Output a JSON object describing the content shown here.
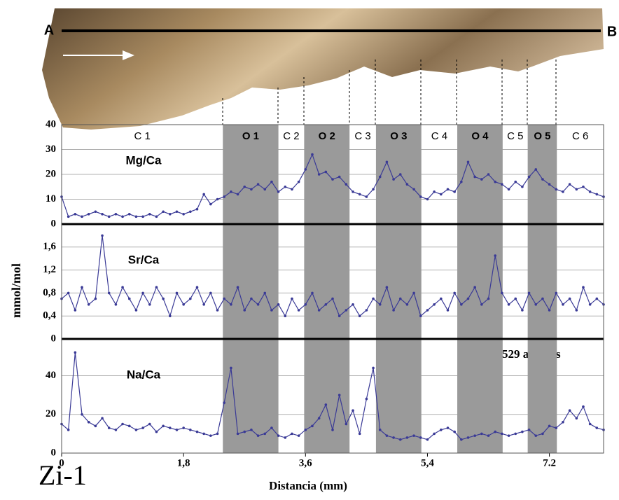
{
  "figure": {
    "label": "Zi-1",
    "line_start": "A",
    "line_end": "B"
  },
  "chart_data": [
    {
      "type": "line",
      "title": "Mg/Ca",
      "xlim": [
        0,
        8
      ],
      "ylim": [
        0,
        40
      ],
      "yticks": [
        0,
        10,
        20,
        30,
        40
      ],
      "grid": true,
      "zones": [
        {
          "label": "C 1",
          "start": 0,
          "end": 2.38,
          "shaded": false
        },
        {
          "label": "O 1",
          "start": 2.38,
          "end": 3.2,
          "shaded": true
        },
        {
          "label": "C 2",
          "start": 3.2,
          "end": 3.58,
          "shaded": false
        },
        {
          "label": "O 2",
          "start": 3.58,
          "end": 4.25,
          "shaded": true
        },
        {
          "label": "C 3",
          "start": 4.25,
          "end": 4.64,
          "shaded": false
        },
        {
          "label": "O 3",
          "start": 4.64,
          "end": 5.31,
          "shaded": true
        },
        {
          "label": "C 4",
          "start": 5.31,
          "end": 5.84,
          "shaded": false
        },
        {
          "label": "O 4",
          "start": 5.84,
          "end": 6.51,
          "shaded": true
        },
        {
          "label": "C 5",
          "start": 6.51,
          "end": 6.88,
          "shaded": false
        },
        {
          "label": "O 5",
          "start": 6.88,
          "end": 7.31,
          "shaded": true
        },
        {
          "label": "C 6",
          "start": 7.31,
          "end": 8,
          "shaded": false
        }
      ],
      "x": [
        0,
        0.1,
        0.2,
        0.3,
        0.4,
        0.5,
        0.6,
        0.7,
        0.8,
        0.9,
        1,
        1.1,
        1.2,
        1.3,
        1.4,
        1.5,
        1.6,
        1.7,
        1.8,
        1.9,
        2,
        2.1,
        2.2,
        2.3,
        2.4,
        2.5,
        2.6,
        2.7,
        2.8,
        2.9,
        3,
        3.1,
        3.2,
        3.3,
        3.4,
        3.5,
        3.6,
        3.7,
        3.8,
        3.9,
        4,
        4.1,
        4.2,
        4.3,
        4.4,
        4.5,
        4.6,
        4.7,
        4.8,
        4.9,
        5,
        5.1,
        5.2,
        5.3,
        5.4,
        5.5,
        5.6,
        5.7,
        5.8,
        5.9,
        6,
        6.1,
        6.2,
        6.3,
        6.4,
        6.5,
        6.6,
        6.7,
        6.8,
        6.9,
        7,
        7.1,
        7.2,
        7.3,
        7.4,
        7.5,
        7.6,
        7.7,
        7.8,
        7.9,
        8
      ],
      "series": [
        {
          "color": "#3a3a96",
          "values": [
            11,
            3,
            4,
            3,
            4,
            5,
            4,
            3,
            4,
            3,
            4,
            3,
            3,
            4,
            3,
            5,
            4,
            5,
            4,
            5,
            6,
            12,
            8,
            10,
            11,
            13,
            12,
            15,
            14,
            16,
            14,
            17,
            13,
            15,
            14,
            17,
            22,
            28,
            20,
            21,
            18,
            19,
            16,
            13,
            12,
            11,
            14,
            19,
            25,
            18,
            20,
            16,
            14,
            11,
            10,
            13,
            12,
            14,
            13,
            17,
            25,
            19,
            18,
            20,
            17,
            16,
            14,
            17,
            15,
            19,
            22,
            18,
            16,
            14,
            13,
            16,
            14,
            15,
            13,
            12,
            11
          ]
        }
      ]
    },
    {
      "type": "line",
      "title": "Sr/Ca",
      "y_label": "mmol/mol",
      "xlim": [
        0,
        8
      ],
      "ylim": [
        0,
        2
      ],
      "yticks": [
        0,
        {
          "value": 0.4,
          "label": "0,4"
        },
        {
          "value": 0.8,
          "label": "0,8"
        },
        {
          "value": 1.2,
          "label": "1,2"
        },
        {
          "value": 1.6,
          "label": "1,6"
        }
      ],
      "grid": true,
      "x": [
        0,
        0.1,
        0.2,
        0.3,
        0.4,
        0.5,
        0.6,
        0.7,
        0.8,
        0.9,
        1,
        1.1,
        1.2,
        1.3,
        1.4,
        1.5,
        1.6,
        1.7,
        1.8,
        1.9,
        2,
        2.1,
        2.2,
        2.3,
        2.4,
        2.5,
        2.6,
        2.7,
        2.8,
        2.9,
        3,
        3.1,
        3.2,
        3.3,
        3.4,
        3.5,
        3.6,
        3.7,
        3.8,
        3.9,
        4,
        4.1,
        4.2,
        4.3,
        4.4,
        4.5,
        4.6,
        4.7,
        4.8,
        4.9,
        5,
        5.1,
        5.2,
        5.3,
        5.4,
        5.5,
        5.6,
        5.7,
        5.8,
        5.9,
        6,
        6.1,
        6.2,
        6.3,
        6.4,
        6.5,
        6.6,
        6.7,
        6.8,
        6.9,
        7,
        7.1,
        7.2,
        7.3,
        7.4,
        7.5,
        7.6,
        7.7,
        7.8,
        7.9,
        8
      ],
      "series": [
        {
          "color": "#3a3a96",
          "values": [
            0.7,
            0.8,
            0.5,
            0.9,
            0.6,
            0.7,
            1.8,
            0.8,
            0.6,
            0.9,
            0.7,
            0.5,
            0.8,
            0.6,
            0.9,
            0.7,
            0.4,
            0.8,
            0.6,
            0.7,
            0.9,
            0.6,
            0.8,
            0.5,
            0.7,
            0.6,
            0.9,
            0.5,
            0.7,
            0.6,
            0.8,
            0.5,
            0.6,
            0.4,
            0.7,
            0.5,
            0.6,
            0.8,
            0.5,
            0.6,
            0.7,
            0.4,
            0.5,
            0.6,
            0.4,
            0.5,
            0.7,
            0.6,
            0.9,
            0.5,
            0.7,
            0.6,
            0.8,
            0.4,
            0.5,
            0.6,
            0.7,
            0.5,
            0.8,
            0.6,
            0.7,
            0.9,
            0.6,
            0.7,
            1.45,
            0.8,
            0.6,
            0.7,
            0.5,
            0.8,
            0.6,
            0.7,
            0.5,
            0.8,
            0.6,
            0.7,
            0.5,
            0.9,
            0.6,
            0.7,
            0.6
          ]
        }
      ]
    },
    {
      "type": "line",
      "title": "Na/Ca",
      "x_label": "Distancia (mm)",
      "annotation": "n = 529 análisis",
      "xlim": [
        0,
        8
      ],
      "xticks": [
        0,
        {
          "value": 1.8,
          "label": "1,8"
        },
        {
          "value": 3.6,
          "label": "3,6"
        },
        {
          "value": 5.4,
          "label": "5,4"
        },
        7.2
      ],
      "ylim": [
        0,
        59
      ],
      "yticks": [
        0,
        20,
        40
      ],
      "grid": true,
      "x": [
        0,
        0.1,
        0.2,
        0.3,
        0.4,
        0.5,
        0.6,
        0.7,
        0.8,
        0.9,
        1,
        1.1,
        1.2,
        1.3,
        1.4,
        1.5,
        1.6,
        1.7,
        1.8,
        1.9,
        2,
        2.1,
        2.2,
        2.3,
        2.4,
        2.5,
        2.6,
        2.7,
        2.8,
        2.9,
        3,
        3.1,
        3.2,
        3.3,
        3.4,
        3.5,
        3.6,
        3.7,
        3.8,
        3.9,
        4,
        4.1,
        4.2,
        4.3,
        4.4,
        4.5,
        4.6,
        4.7,
        4.8,
        4.9,
        5,
        5.1,
        5.2,
        5.3,
        5.4,
        5.5,
        5.6,
        5.7,
        5.8,
        5.9,
        6,
        6.1,
        6.2,
        6.3,
        6.4,
        6.5,
        6.6,
        6.7,
        6.8,
        6.9,
        7,
        7.1,
        7.2,
        7.3,
        7.4,
        7.5,
        7.6,
        7.7,
        7.8,
        7.9,
        8
      ],
      "series": [
        {
          "color": "#3a3a96",
          "values": [
            15,
            12,
            52,
            20,
            16,
            14,
            18,
            13,
            12,
            15,
            14,
            12,
            13,
            15,
            11,
            14,
            13,
            12,
            13,
            12,
            11,
            10,
            9,
            10,
            26,
            44,
            10,
            11,
            12,
            9,
            10,
            13,
            9,
            8,
            10,
            9,
            12,
            14,
            18,
            25,
            12,
            30,
            15,
            22,
            10,
            28,
            44,
            12,
            9,
            8,
            7,
            8,
            9,
            8,
            7,
            10,
            12,
            13,
            11,
            7,
            8,
            9,
            10,
            9,
            11,
            10,
            9,
            10,
            11,
            12,
            9,
            10,
            14,
            13,
            16,
            22,
            18,
            24,
            15,
            13,
            12
          ]
        }
      ]
    }
  ]
}
